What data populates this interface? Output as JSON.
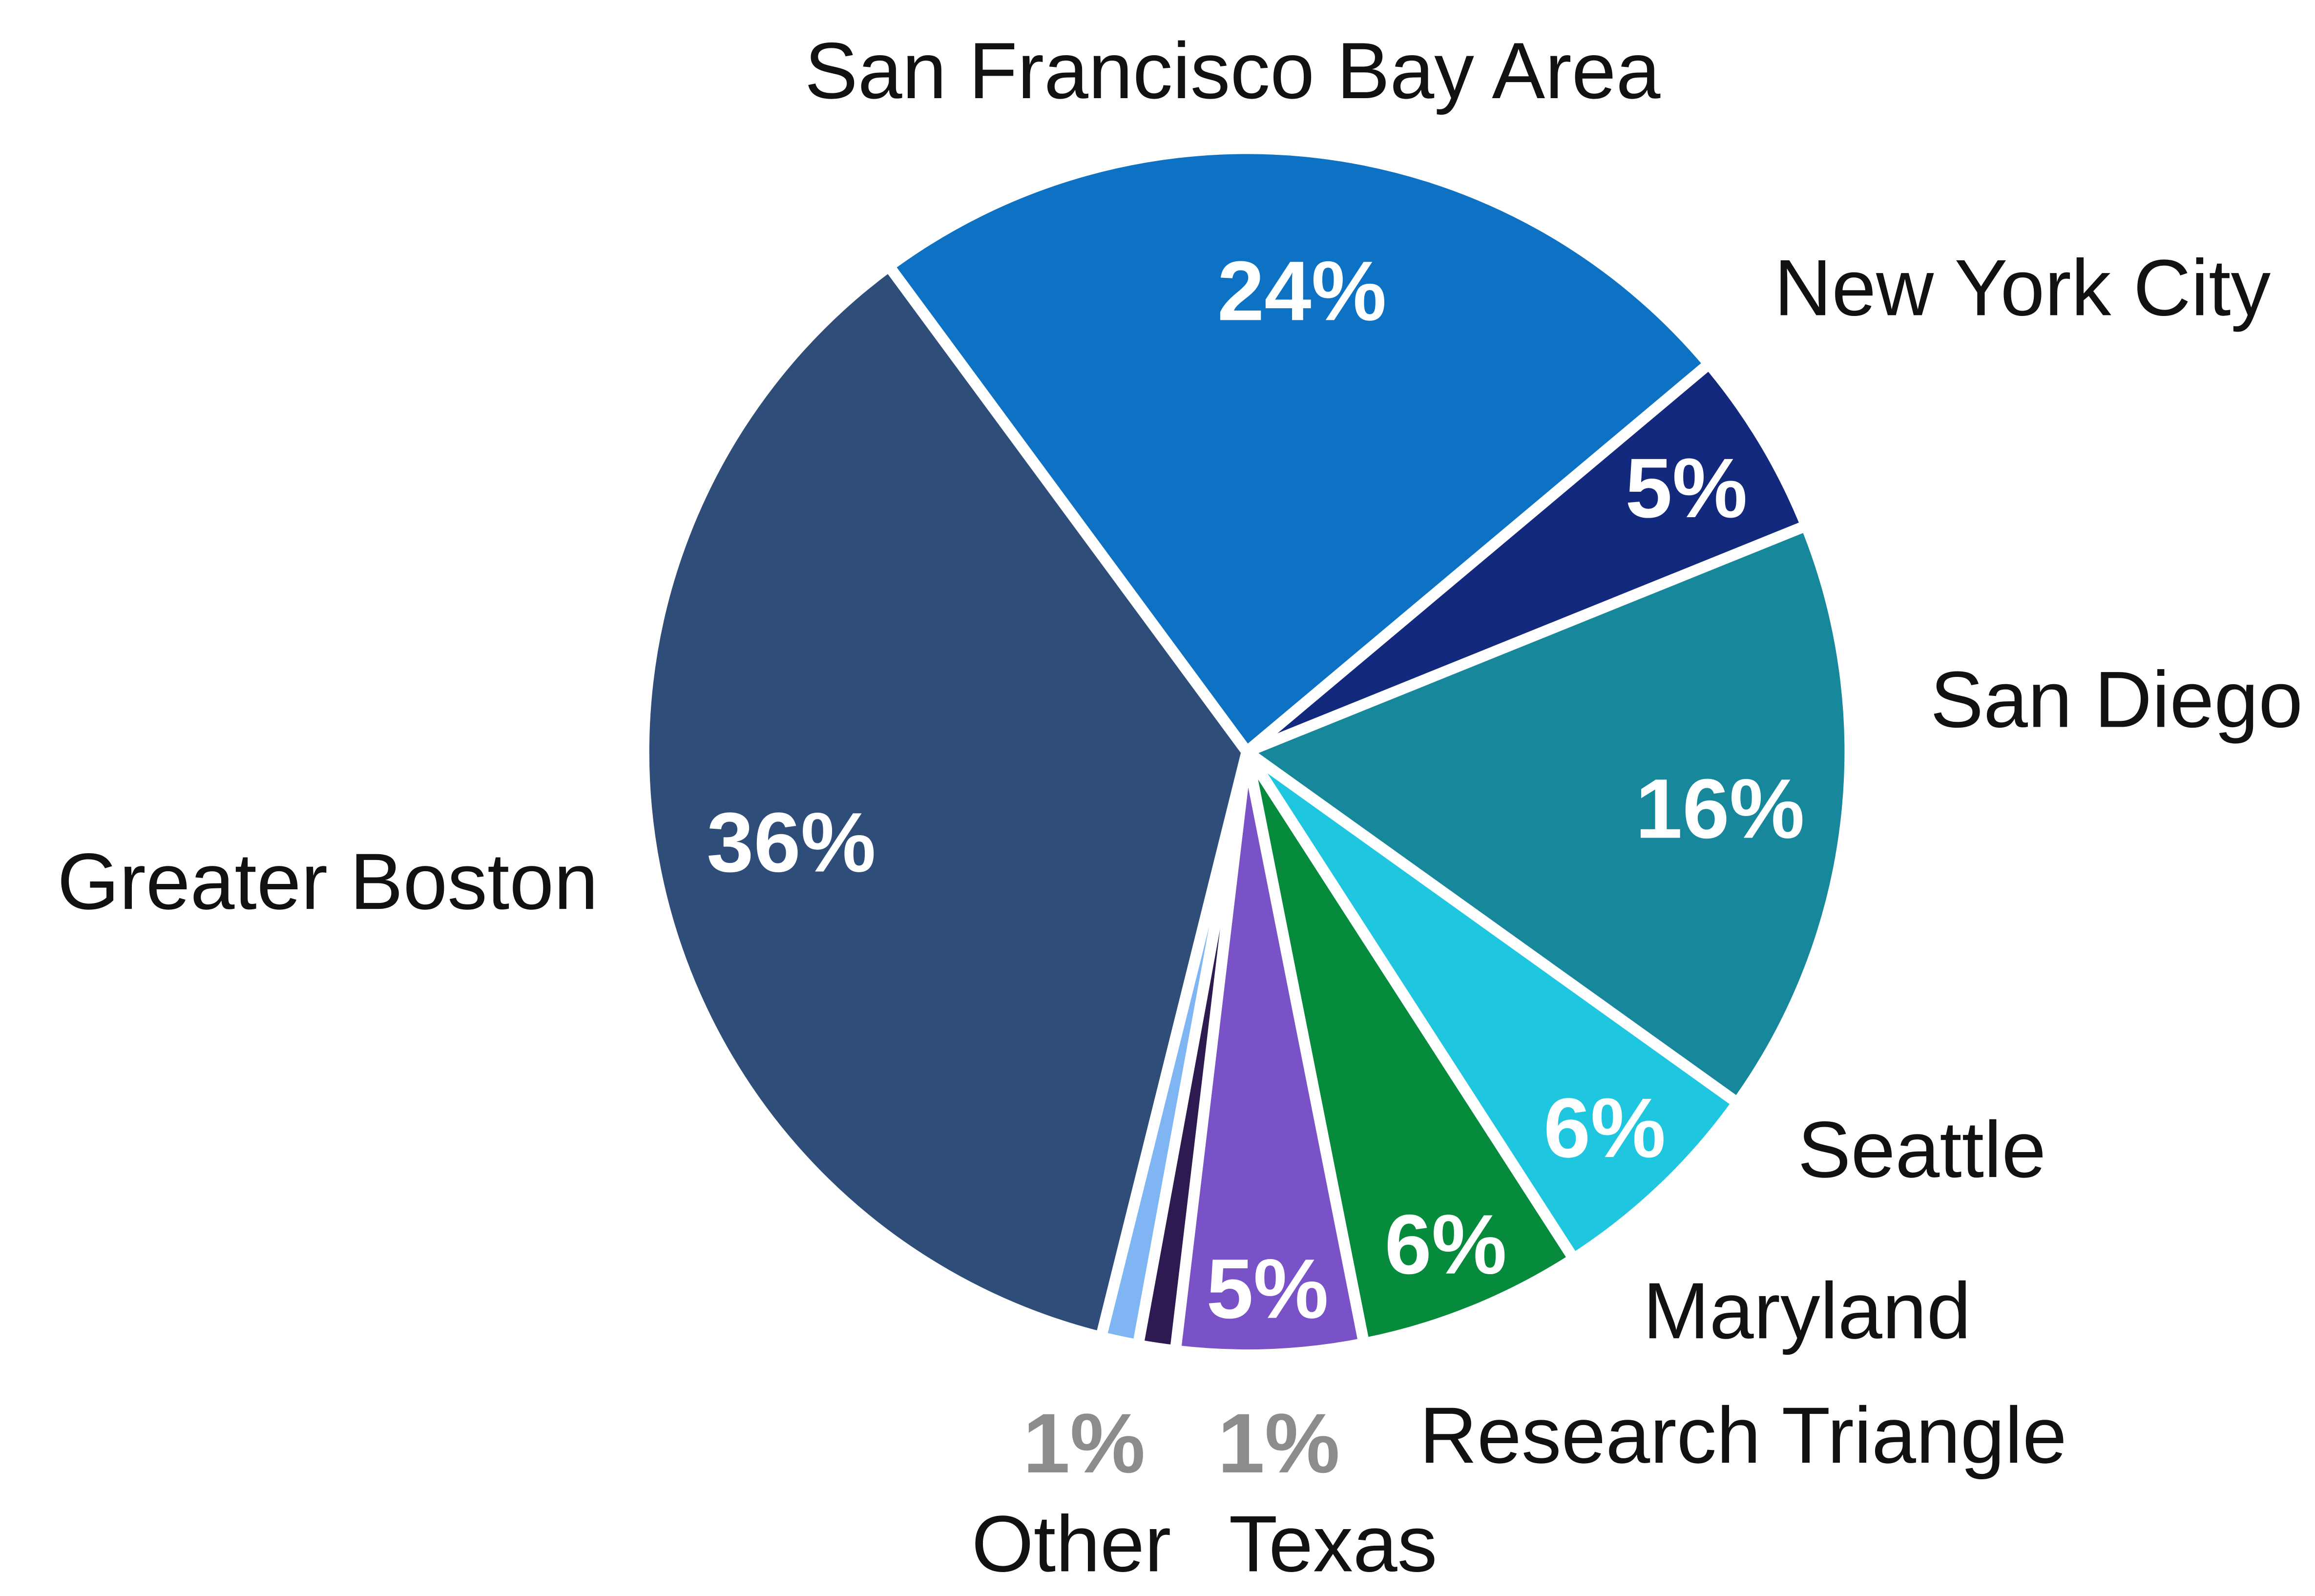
{
  "chart_data": {
    "type": "pie",
    "title": "",
    "direction": "clockwise",
    "start_angle_deg": -36.4,
    "legend_position": "none",
    "background": "#ffffff",
    "name_label_color": "#111111",
    "percent_label_color_inside": "#ffffff",
    "percent_label_color_outside": "#8c8c8c",
    "slice_border_color": "#ffffff",
    "slices": [
      {
        "label": "San Francisco Bay Area",
        "value": 24,
        "pct_label": "24%",
        "color": "#0d72c4"
      },
      {
        "label": "New York City",
        "value": 5,
        "pct_label": "5%",
        "color": "#12297e"
      },
      {
        "label": "San Diego",
        "value": 16,
        "pct_label": "16%",
        "color": "#17889b"
      },
      {
        "label": "Seattle",
        "value": 6,
        "pct_label": "6%",
        "color": "#1ec6e0"
      },
      {
        "label": "Maryland",
        "value": 6,
        "pct_label": "6%",
        "color": "#068a3c"
      },
      {
        "label": "Research Triangle",
        "value": 5,
        "pct_label": "5%",
        "color": "#7a52c8"
      },
      {
        "label": "Texas",
        "value": 1,
        "pct_label": "1%",
        "color": "#2c1a50"
      },
      {
        "label": "Other",
        "value": 1,
        "pct_label": "1%",
        "color": "#7fb5f2"
      },
      {
        "label": "Greater Boston",
        "value": 36,
        "pct_label": "36%",
        "color": "#2e4d78"
      }
    ]
  }
}
